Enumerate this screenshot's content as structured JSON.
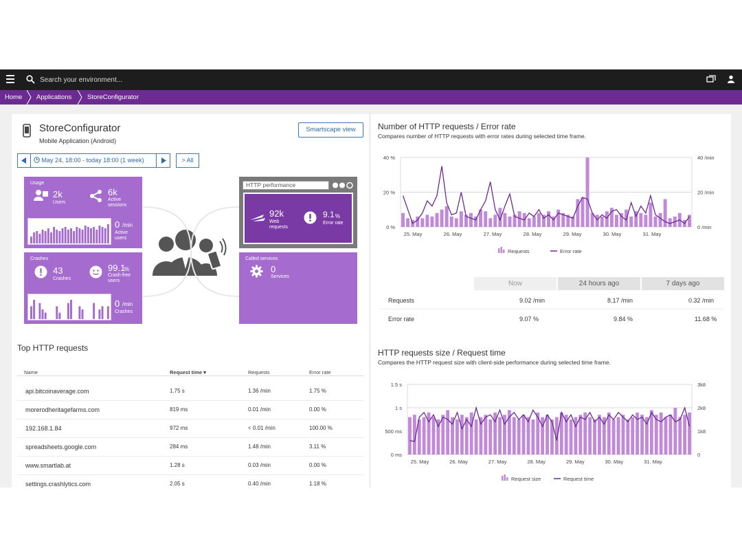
{
  "topbar": {
    "search_placeholder": "Search your environment..."
  },
  "breadcrumb": [
    "Home",
    "Applications",
    "StoreConfigurator"
  ],
  "app": {
    "name": "StoreConfigurator",
    "type": "Mobile Application (Android)",
    "smartscape_label": "Smartscape view"
  },
  "timeframe": {
    "label": "May 24, 18:00 - today 18:00 (1 week)",
    "all_label": "All"
  },
  "usage": {
    "title": "Usage",
    "users_value": "2k",
    "users_label": "Users",
    "sessions_value": "6k",
    "sessions_label_1": "Active",
    "sessions_label_2": "sessions",
    "active_value": "0",
    "active_unit": "/min",
    "active_label_1": "Active",
    "active_label_2": "users",
    "bars": [
      5,
      8,
      9,
      7,
      10,
      9,
      11,
      8,
      12,
      10,
      9,
      11,
      12,
      10,
      11,
      9,
      12,
      11,
      10,
      13,
      12,
      11,
      12,
      10,
      13,
      12,
      11,
      14
    ]
  },
  "crashes": {
    "title": "Crashes",
    "crashes_value": "43",
    "crashes_label": "Crashes",
    "free_value": "99.1",
    "free_unit": "%",
    "free_label_1": "Crash-free",
    "free_label_2": "users",
    "rate_value": "0",
    "rate_unit": "/min",
    "rate_label": "Crashes",
    "bars": [
      4,
      6,
      0,
      5,
      3,
      2,
      0,
      0,
      0,
      4,
      2,
      0,
      0,
      5,
      6,
      0,
      0,
      4,
      3,
      0,
      0,
      0,
      5,
      0,
      3,
      4,
      0,
      4
    ]
  },
  "http": {
    "title": "HTTP performance",
    "web_value": "92k",
    "web_label_1": "Web",
    "web_label_2": "requests",
    "err_value": "9.1",
    "err_unit": "%",
    "err_label": "Error rate"
  },
  "called": {
    "title": "Called services",
    "value": "0",
    "label": "Services"
  },
  "top_http": {
    "title": "Top HTTP requests",
    "headers": [
      "Name",
      "Request time ▾",
      "Requests",
      "Error rate"
    ],
    "rows": [
      [
        "api.bitcoinaverage.com",
        "1.75 s",
        "1.36 /min",
        "1.75 %"
      ],
      [
        "morerodheritagefarms.com",
        "819 ms",
        "0.01 /min",
        "0.00 %"
      ],
      [
        "192.168.1.84",
        "972 ms",
        "< 0.01 /min",
        "100.00 %"
      ],
      [
        "spreadsheets.google.com",
        "284 ms",
        "1.48 /min",
        "3.11 %"
      ],
      [
        "www.smartlab.at",
        "1.28 s",
        "0.03 /min",
        "0.00 %"
      ],
      [
        "settings.crashlytics.com",
        "2.05 s",
        "0.40 /min",
        "1.18 %"
      ]
    ]
  },
  "chart1": {
    "title": "Number of HTTP requests / Error rate",
    "subtitle": "Compares number of HTTP requests with error rates during selected time frame.",
    "legend": [
      "Requests",
      "Error rate"
    ]
  },
  "compare": {
    "tabs": [
      "Now",
      "24 hours ago",
      "7 days ago"
    ],
    "rows": [
      [
        "Requests",
        "9.02 /min",
        "8.17 /min",
        "0.32 /min"
      ],
      [
        "Error rate",
        "9.07 %",
        "9.84 %",
        "11.68 %"
      ]
    ]
  },
  "chart2": {
    "title": "HTTP requests size / Request time",
    "subtitle": "Compares the HTTP request size with client-side performance during selected time frame.",
    "legend": [
      "Request size",
      "Request time"
    ]
  },
  "colors": {
    "brand": "#6b2b91",
    "tile": "#a56bcf",
    "tile_dark": "#7a3aa5",
    "bar": "#c08ad8",
    "line": "#6b2b91"
  },
  "chart_data": [
    {
      "type": "bar",
      "title": "Number of HTTP requests / Error rate",
      "x_ticks": [
        "25. May",
        "26. May",
        "27. May",
        "28. May",
        "29. May",
        "30. May",
        "31. May"
      ],
      "y_left_ticks": [
        "40 %",
        "20 %",
        "0 %"
      ],
      "y_right_ticks": [
        "40 /min",
        "20 /min",
        "0 /min"
      ],
      "ylim_left": [
        0,
        40
      ],
      "ylim_right": [
        0,
        40
      ],
      "series": [
        {
          "name": "Requests",
          "kind": "bar",
          "axis": "right",
          "values": [
            8,
            5,
            4,
            6,
            5,
            7,
            6,
            8,
            10,
            12,
            6,
            5,
            9,
            7,
            8,
            6,
            10,
            9,
            5,
            7,
            11,
            8,
            6,
            7,
            9,
            8,
            5,
            6,
            8,
            7,
            9,
            6,
            10,
            8,
            7,
            6,
            16,
            17,
            40,
            8,
            7,
            6,
            9,
            11,
            7,
            8,
            10,
            6,
            9,
            8,
            7,
            14,
            6,
            8,
            16,
            5,
            6,
            8,
            4,
            7
          ]
        },
        {
          "name": "Error rate",
          "kind": "line",
          "axis": "left",
          "values": [
            18,
            10,
            2,
            4,
            8,
            15,
            12,
            18,
            35,
            14,
            7,
            8,
            20,
            6,
            5,
            4,
            10,
            15,
            26,
            10,
            4,
            12,
            19,
            6,
            5,
            4,
            8,
            6,
            10,
            5,
            7,
            4,
            8,
            7,
            6,
            5,
            12,
            17,
            16,
            8,
            4,
            7,
            5,
            9,
            10,
            6,
            4,
            14,
            6,
            12,
            8,
            18,
            7,
            5,
            3,
            2,
            3,
            4,
            2,
            6
          ]
        }
      ]
    },
    {
      "type": "bar",
      "title": "HTTP requests size / Request time",
      "x_ticks": [
        "25. May",
        "26. May",
        "27. May",
        "28. May",
        "29. May",
        "30. May",
        "31. May"
      ],
      "y_left_ticks": [
        "1.5 s",
        "1 s",
        "500 ms",
        "0 ms"
      ],
      "y_right_ticks": [
        "3k8",
        "2k8",
        "1k8",
        "0"
      ],
      "ylim_left": [
        0,
        1500
      ],
      "ylim_right": [
        0,
        3
      ],
      "series": [
        {
          "name": "Request size",
          "kind": "bar",
          "axis": "right",
          "values": [
            1.6,
            1.7,
            1.5,
            1.6,
            1.8,
            1.6,
            1.5,
            1.7,
            1.9,
            1.6,
            1.5,
            1.7,
            1.6,
            1.8,
            1.5,
            1.6,
            1.7,
            1.5,
            1.8,
            1.6,
            1.7,
            1.9,
            1.6,
            1.5,
            1.7,
            1.6,
            1.5,
            1.8,
            1.6,
            1.7,
            1.5,
            1.6,
            1.8,
            1.7,
            1.5,
            1.6,
            1.7,
            1.8,
            1.6,
            1.5,
            1.7,
            1.6,
            1.8,
            1.5,
            1.6,
            1.7,
            1.5,
            1.6,
            1.8,
            1.7,
            1.6,
            1.9,
            1.7,
            1.8,
            1.6,
            1.7,
            2.0,
            1.6,
            1.7,
            1.8
          ]
        },
        {
          "name": "Request time",
          "kind": "line",
          "axis": "left",
          "values": [
            300,
            280,
            800,
            900,
            700,
            850,
            600,
            800,
            750,
            650,
            900,
            550,
            750,
            600,
            1000,
            650,
            800,
            850,
            700,
            950,
            650,
            800,
            900,
            750,
            850,
            700,
            950,
            800,
            600,
            850,
            700,
            300,
            900,
            700,
            850,
            600,
            800,
            750,
            900,
            700,
            800,
            650,
            850,
            750,
            900,
            800,
            700,
            850,
            750,
            800,
            650,
            900,
            750,
            700,
            800,
            850,
            700,
            750,
            1000,
            600
          ]
        }
      ]
    }
  ]
}
